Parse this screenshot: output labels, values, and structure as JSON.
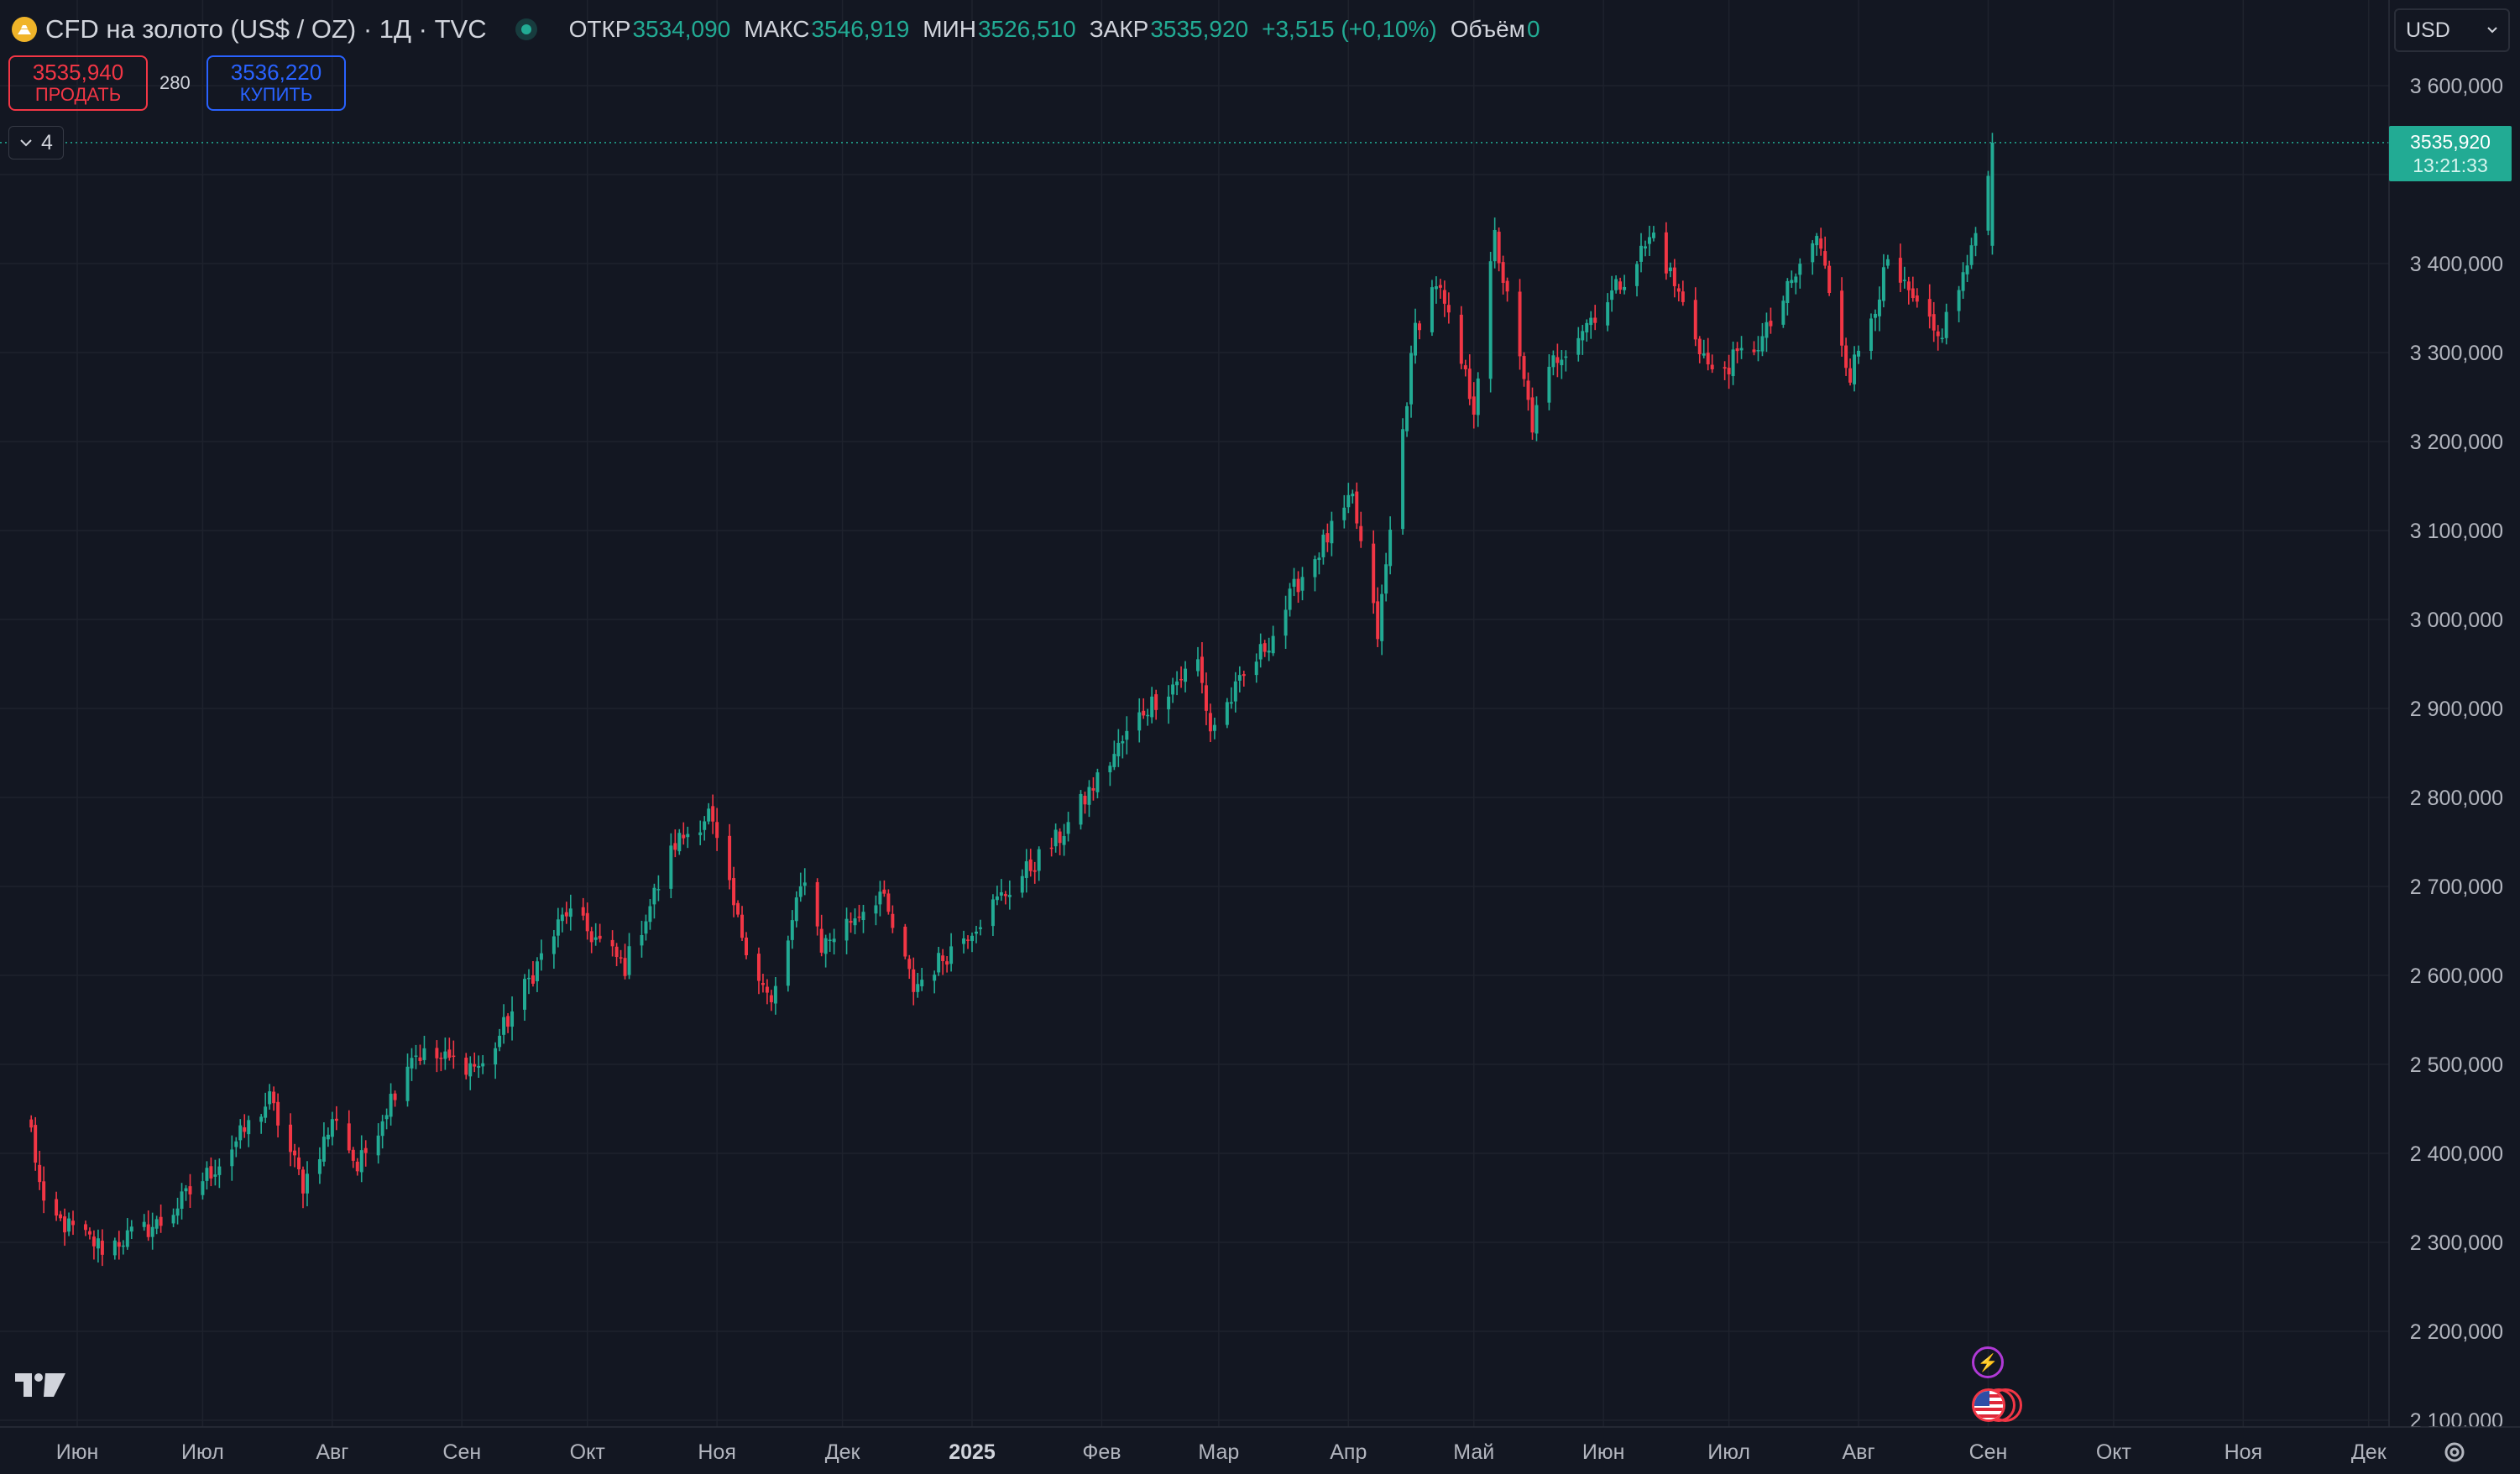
{
  "header": {
    "symbol_title": "CFD на золото (US$ / OZ) · 1Д · TVC",
    "ohlc": [
      {
        "label": "ОТКР",
        "value": "3534,090"
      },
      {
        "label": "МАКС",
        "value": "3546,919"
      },
      {
        "label": "МИН",
        "value": "3526,510"
      },
      {
        "label": "ЗАКР",
        "value": "3535,920"
      },
      {
        "label": "",
        "value": "+3,515 (+0,10%)"
      },
      {
        "label": "Объём",
        "value": "0"
      }
    ]
  },
  "trade": {
    "sell_price": "3535,940",
    "sell_label": "ПРОДАТЬ",
    "spread": "280",
    "buy_price": "3536,220",
    "buy_label": "КУПИТЬ"
  },
  "indicators_toggle": "4",
  "currency": "USD",
  "last_price": {
    "value": "3535,920",
    "countdown": "13:21:33"
  },
  "colors": {
    "up": "#22ab94",
    "down": "#f23645",
    "background": "#131722",
    "grid": "#1e222d",
    "axis_text": "#b2b5be"
  },
  "chart_data": {
    "type": "candlestick",
    "title": "CFD на золото (US$ / OZ) · 1Д · TVC",
    "ylim": [
      2090000,
      3640000
    ],
    "y_ticks": [
      {
        "value": 3600000,
        "label": "3 600,000"
      },
      {
        "value": 3500000,
        "label": ""
      },
      {
        "value": 3400000,
        "label": "3 400,000"
      },
      {
        "value": 3300000,
        "label": "3 300,000"
      },
      {
        "value": 3200000,
        "label": "3 200,000"
      },
      {
        "value": 3100000,
        "label": "3 100,000"
      },
      {
        "value": 3000000,
        "label": "3 000,000"
      },
      {
        "value": 2900000,
        "label": "2 900,000"
      },
      {
        "value": 2800000,
        "label": "2 800,000"
      },
      {
        "value": 2700000,
        "label": "2 700,000"
      },
      {
        "value": 2600000,
        "label": "2 600,000"
      },
      {
        "value": 2500000,
        "label": "2 500,000"
      },
      {
        "value": 2400000,
        "label": "2 400,000"
      },
      {
        "value": 2300000,
        "label": "2 300,000"
      },
      {
        "value": 2200000,
        "label": "2 200,000"
      },
      {
        "value": 2100000,
        "label": "2 100,000"
      }
    ],
    "x_ticks": [
      {
        "index": 0,
        "label": "Июн",
        "bold": false
      },
      {
        "index": 1,
        "label": "Июл",
        "bold": false
      },
      {
        "index": 2,
        "label": "Авг",
        "bold": false
      },
      {
        "index": 3,
        "label": "Сен",
        "bold": false
      },
      {
        "index": 4,
        "label": "Окт",
        "bold": false
      },
      {
        "index": 5,
        "label": "Ноя",
        "bold": false
      },
      {
        "index": 6,
        "label": "Дек",
        "bold": false
      },
      {
        "index": 7,
        "label": "2025",
        "bold": true
      },
      {
        "index": 8,
        "label": "Фев",
        "bold": false
      },
      {
        "index": 9,
        "label": "Мар",
        "bold": false
      },
      {
        "index": 10,
        "label": "Апр",
        "bold": false
      },
      {
        "index": 11,
        "label": "Май",
        "bold": false
      },
      {
        "index": 12,
        "label": "Июн",
        "bold": false
      },
      {
        "index": 13,
        "label": "Июл",
        "bold": false
      },
      {
        "index": 14,
        "label": "Авг",
        "bold": false
      },
      {
        "index": 15,
        "label": "Сен",
        "bold": false
      },
      {
        "index": 16,
        "label": "Окт",
        "bold": false
      },
      {
        "index": 17,
        "label": "Ноя",
        "bold": false
      },
      {
        "index": 18,
        "label": "Дек",
        "bold": false
      }
    ],
    "x_tick_dates": [
      "2024-06-01",
      "2024-07-01",
      "2024-08-01",
      "2024-09-01",
      "2024-10-01",
      "2024-11-01",
      "2024-12-01",
      "2025-01-01",
      "2025-02-01",
      "2025-03-01",
      "2025-04-01",
      "2025-05-01",
      "2025-06-01",
      "2025-07-01",
      "2025-08-01",
      "2025-09-01",
      "2025-10-01",
      "2025-11-01",
      "2025-12-01"
    ],
    "start_date": "2024-05-21",
    "last_close": 3535920,
    "anchors": [
      {
        "date": "2024-05-21",
        "close": 2425000
      },
      {
        "date": "2024-05-24",
        "close": 2334000
      },
      {
        "date": "2024-06-07",
        "close": 2294000
      },
      {
        "date": "2024-06-21",
        "close": 2322000
      },
      {
        "date": "2024-07-05",
        "close": 2390000
      },
      {
        "date": "2024-07-17",
        "close": 2460000
      },
      {
        "date": "2024-07-25",
        "close": 2365000
      },
      {
        "date": "2024-08-02",
        "close": 2443000
      },
      {
        "date": "2024-08-07",
        "close": 2382000
      },
      {
        "date": "2024-08-20",
        "close": 2513000
      },
      {
        "date": "2024-09-06",
        "close": 2497000
      },
      {
        "date": "2024-09-20",
        "close": 2621000
      },
      {
        "date": "2024-09-26",
        "close": 2672000
      },
      {
        "date": "2024-10-10",
        "close": 2610000
      },
      {
        "date": "2024-10-22",
        "close": 2748000
      },
      {
        "date": "2024-10-30",
        "close": 2782000
      },
      {
        "date": "2024-11-06",
        "close": 2659000
      },
      {
        "date": "2024-11-14",
        "close": 2565000
      },
      {
        "date": "2024-11-22",
        "close": 2714000
      },
      {
        "date": "2024-11-26",
        "close": 2633000
      },
      {
        "date": "2024-12-10",
        "close": 2693000
      },
      {
        "date": "2024-12-18",
        "close": 2586000
      },
      {
        "date": "2025-01-02",
        "close": 2659000
      },
      {
        "date": "2025-01-22",
        "close": 2756000
      },
      {
        "date": "2025-02-11",
        "close": 2898000
      },
      {
        "date": "2025-02-24",
        "close": 2952000
      },
      {
        "date": "2025-02-27",
        "close": 2876000
      },
      {
        "date": "2025-03-14",
        "close": 2984000
      },
      {
        "date": "2025-03-20",
        "close": 3043000
      },
      {
        "date": "2025-04-02",
        "close": 3134000
      },
      {
        "date": "2025-04-08",
        "close": 2983000
      },
      {
        "date": "2025-04-17",
        "close": 3327000
      },
      {
        "date": "2025-04-22",
        "close": 3380000
      },
      {
        "date": "2025-05-01",
        "close": 3240000
      },
      {
        "date": "2025-05-06",
        "close": 3430000
      },
      {
        "date": "2025-05-15",
        "close": 3218000
      },
      {
        "date": "2025-05-20",
        "close": 3290000
      },
      {
        "date": "2025-06-04",
        "close": 3372000
      },
      {
        "date": "2025-06-13",
        "close": 3433000
      },
      {
        "date": "2025-06-27",
        "close": 3274000
      },
      {
        "date": "2025-07-09",
        "close": 3314000
      },
      {
        "date": "2025-07-22",
        "close": 3431000
      },
      {
        "date": "2025-07-30",
        "close": 3275000
      },
      {
        "date": "2025-08-08",
        "close": 3397000
      },
      {
        "date": "2025-08-20",
        "close": 3314000
      },
      {
        "date": "2025-08-28",
        "close": 3410000
      },
      {
        "date": "2025-09-02",
        "close": 3535920
      }
    ]
  }
}
